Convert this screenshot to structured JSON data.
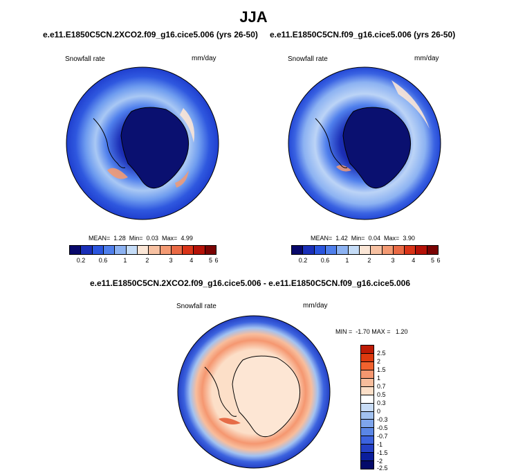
{
  "title": "JJA",
  "panels": [
    {
      "id": "p1",
      "title": "e.e11.E1850C5CN.2XCO2.f09_g16.cice5.006 (yrs 26-50)",
      "left_label": "Snowfall rate",
      "right_label": "mm/day",
      "stats": "MEAN=  1.28  Min=  0.03  Max=  4.99"
    },
    {
      "id": "p2",
      "title": "e.e11.E1850C5CN.f09_g16.cice5.006 (yrs 26-50)",
      "left_label": "Snowfall rate",
      "right_label": "mm/day",
      "stats": "MEAN=  1.42  Min=  0.04  Max=  3.90"
    }
  ],
  "diff_panel": {
    "title": "e.e11.E1850C5CN.2XCO2.f09_g16.cice5.006 - e.e11.E1850C5CN.f09_g16.cice5.006",
    "left_label": "Snowfall rate",
    "right_label": "mm/day",
    "stats": "MIN =  -1.70 MAX =   1.20"
  },
  "colorbar_abs": {
    "colors": [
      "#08086b",
      "#1a2fb8",
      "#2a55de",
      "#4f7fec",
      "#8cb2f2",
      "#c5dcf7",
      "#fbe6d6",
      "#f7c1a2",
      "#f39a73",
      "#ea6a45",
      "#d93418",
      "#b51208",
      "#7a0303"
    ],
    "labels": [
      "0.2",
      "0.6",
      "1",
      "2",
      "3",
      "4",
      "5",
      "6"
    ]
  },
  "colorbar_diff": {
    "colors": [
      "#bd1b05",
      "#dd3a0f",
      "#f1622e",
      "#f59770",
      "#f8bd9c",
      "#fcdfc8",
      "#ffffff",
      "#c8dcf6",
      "#a2c2f1",
      "#7ea5ec",
      "#5a86e6",
      "#3c63df",
      "#2440c5",
      "#0b1e9c",
      "#040a6a"
    ],
    "labels": [
      "2.5",
      "2",
      "1.5",
      "1",
      "0.7",
      "0.5",
      "0.3",
      "0",
      "-0.3",
      "-0.5",
      "-0.7",
      "-1",
      "-1.5",
      "-2",
      "-2.5"
    ]
  }
}
